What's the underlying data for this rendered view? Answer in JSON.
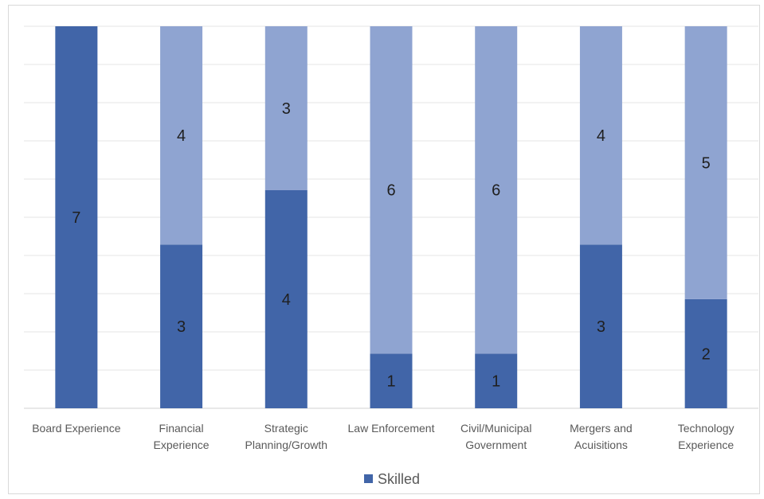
{
  "chart_data": {
    "type": "bar",
    "stacked": true,
    "categories": [
      [
        "Board Experience"
      ],
      [
        "Financial",
        "Experience"
      ],
      [
        "Strategic",
        "Planning/Growth"
      ],
      [
        "Law Enforcement"
      ],
      [
        "Civil/Municipal",
        "Government"
      ],
      [
        "Mergers and",
        "Acuisitions"
      ],
      [
        "Technology",
        "Experience"
      ]
    ],
    "series": [
      {
        "name": "Skilled",
        "values": [
          7,
          3,
          4,
          1,
          1,
          3,
          2
        ],
        "color": "#4165a8"
      },
      {
        "values": [
          0,
          4,
          3,
          6,
          6,
          4,
          5
        ],
        "color": "#8fa4d1"
      }
    ],
    "ylim": [
      0,
      7
    ],
    "grid": true,
    "legend": {
      "position": "bottom",
      "entries": [
        "Skilled"
      ]
    }
  }
}
